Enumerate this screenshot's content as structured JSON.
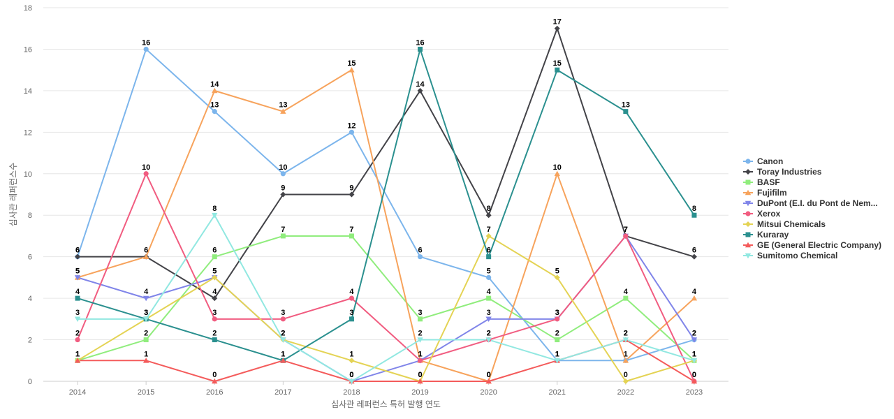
{
  "chart_data": {
    "type": "line",
    "title": "",
    "xlabel": "심사관 레퍼런스 특허 발행 연도",
    "ylabel": "심사관 레퍼런스수",
    "ylim": [
      0,
      18
    ],
    "yticks": [
      0,
      2,
      4,
      6,
      8,
      10,
      12,
      14,
      16,
      18
    ],
    "x": [
      2014,
      2015,
      2016,
      2017,
      2018,
      2019,
      2020,
      2021,
      2022,
      2023
    ],
    "grid": true,
    "legend_position": "right",
    "series": [
      {
        "name": "Canon",
        "color": "#7cb5ec",
        "marker": "circle",
        "values": [
          6,
          16,
          13,
          10,
          12,
          6,
          5,
          1,
          1,
          2
        ]
      },
      {
        "name": "Toray Industries",
        "color": "#434348",
        "marker": "diamond",
        "values": [
          6,
          6,
          4,
          9,
          9,
          14,
          8,
          17,
          7,
          6
        ]
      },
      {
        "name": "BASF",
        "color": "#90ed7d",
        "marker": "square",
        "values": [
          1,
          2,
          6,
          7,
          7,
          3,
          4,
          2,
          4,
          1
        ]
      },
      {
        "name": "Fujifilm",
        "color": "#f7a35c",
        "marker": "triangle",
        "values": [
          5,
          6,
          14,
          13,
          15,
          1,
          0,
          10,
          1,
          4
        ]
      },
      {
        "name": "DuPont (E.I. du Pont de Nem...",
        "color": "#8085e9",
        "marker": "triangle-down",
        "values": [
          5,
          4,
          5,
          2,
          0,
          1,
          3,
          3,
          7,
          2
        ]
      },
      {
        "name": "Xerox",
        "color": "#f15c80",
        "marker": "circle",
        "values": [
          2,
          10,
          3,
          3,
          4,
          1,
          2,
          3,
          7,
          0
        ]
      },
      {
        "name": "Mitsui Chemicals",
        "color": "#e4d354",
        "marker": "diamond",
        "values": [
          1,
          3,
          5,
          2,
          1,
          0,
          7,
          5,
          0,
          1
        ]
      },
      {
        "name": "Kuraray",
        "color": "#2b908f",
        "marker": "square",
        "values": [
          4,
          3,
          2,
          1,
          3,
          16,
          6,
          15,
          13,
          8
        ]
      },
      {
        "name": "GE (General Electric Company)",
        "color": "#f45b5b",
        "marker": "triangle",
        "values": [
          1,
          1,
          0,
          1,
          0,
          0,
          0,
          1,
          2,
          0
        ]
      },
      {
        "name": "Sumitomo Chemical",
        "color": "#91e8e1",
        "marker": "triangle-down",
        "values": [
          3,
          3,
          8,
          2,
          0,
          2,
          2,
          1,
          2,
          1
        ]
      }
    ],
    "data_labels_visible": [
      [
        6,
        16,
        13,
        10,
        12,
        6,
        5,
        1,
        null,
        2
      ],
      [
        6,
        6,
        4,
        9,
        9,
        14,
        8,
        17,
        7,
        6
      ],
      [
        1,
        2,
        6,
        7,
        7,
        3,
        4,
        2,
        4,
        1
      ],
      [
        5,
        null,
        14,
        13,
        15,
        1,
        0,
        10,
        1,
        4
      ],
      [
        5,
        4,
        5,
        2,
        0,
        1,
        3,
        3,
        null,
        2
      ],
      [
        2,
        10,
        3,
        3,
        4,
        1,
        2,
        3,
        7,
        0
      ],
      [
        1,
        3,
        5,
        2,
        1,
        0,
        7,
        5,
        0,
        1
      ],
      [
        4,
        3,
        2,
        1,
        3,
        16,
        6,
        15,
        13,
        8
      ],
      [
        1,
        1,
        0,
        1,
        0,
        0,
        0,
        1,
        2,
        0
      ],
      [
        3,
        3,
        8,
        2,
        0,
        2,
        2,
        1,
        2,
        1
      ]
    ]
  }
}
